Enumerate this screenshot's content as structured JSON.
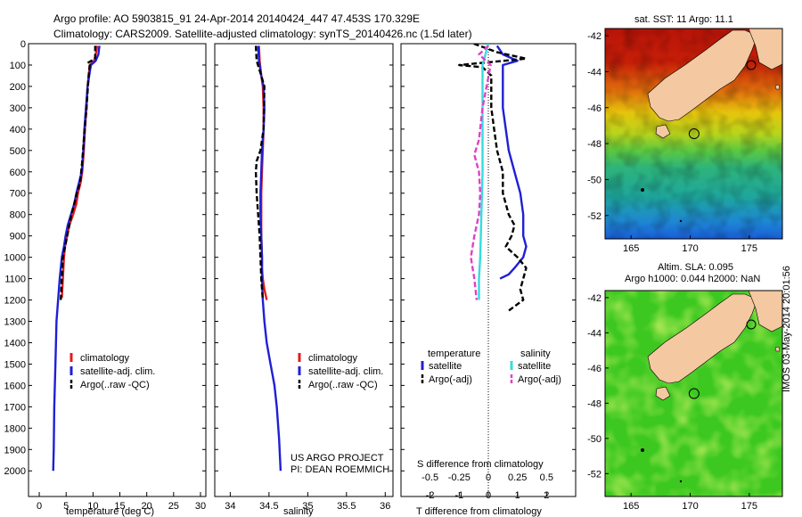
{
  "header": {
    "line1": "Argo profile: AO 5903815_91 24-Apr-2014 20140424_447 47.453S 170.329E",
    "line2": "Climatology: CARS2009. Satellite-adjusted climatology: synTS_20140426.nc (1.5d later)"
  },
  "credit": {
    "line1": "US ARGO PROJECT",
    "line2": "PI: DEAN ROEMMICH"
  },
  "stamp": "IMOS 03-May-2014 20:01:56",
  "colors": {
    "climatology": "#e41a1c",
    "satellite": "#1f1fd6",
    "argo": "#000000",
    "sal_sat": "#33dddd",
    "sal_argo": "#e040c8",
    "land": "#f4c8a0"
  },
  "chart_data": [
    {
      "type": "line",
      "id": "temperature",
      "xlabel": "temperature (deg C)",
      "xticks": [
        "0",
        "5",
        "10",
        "15",
        "20",
        "25",
        "30"
      ],
      "xlim": [
        -2,
        31
      ],
      "yticks": [
        "0",
        "100",
        "200",
        "300",
        "400",
        "500",
        "600",
        "700",
        "800",
        "900",
        "1000",
        "1100",
        "1200",
        "1300",
        "1400",
        "1500",
        "1600",
        "1700",
        "1800",
        "1900",
        "2000"
      ],
      "ylim": [
        0,
        2120
      ],
      "legend": [
        "climatology",
        "satellite-adj. clim.",
        "Argo(..raw -QC)"
      ],
      "series": [
        {
          "name": "climatology",
          "style": "solid",
          "x": [
            10.8,
            10.5,
            10.2,
            9.4,
            9.2,
            9.0,
            8.8,
            8.5,
            8.3,
            8.0,
            7.7,
            7.2,
            6.9,
            6.3,
            5.6,
            5.2,
            4.8,
            4.6,
            4.4,
            4.2
          ],
          "y": [
            10,
            50,
            80,
            100,
            150,
            200,
            300,
            400,
            500,
            600,
            650,
            700,
            750,
            800,
            850,
            900,
            950,
            1000,
            1100,
            1190
          ]
        },
        {
          "name": "satellite-adj. clim.",
          "style": "solid",
          "x": [
            11.2,
            11.0,
            10.5,
            9.6,
            9.3,
            9.0,
            8.7,
            8.4,
            8.2,
            7.9,
            7.4,
            6.9,
            6.5,
            5.9,
            5.3,
            4.9,
            4.6,
            4.2,
            3.8,
            3.5,
            3.2,
            3.0,
            2.8,
            2.7,
            2.6
          ],
          "y": [
            10,
            50,
            80,
            100,
            150,
            200,
            300,
            400,
            500,
            600,
            650,
            700,
            750,
            800,
            850,
            900,
            950,
            1000,
            1100,
            1200,
            1300,
            1500,
            1700,
            1900,
            2000
          ]
        },
        {
          "name": "Argo(..raw -QC)",
          "style": "dashed",
          "x": [
            10.4,
            10.4,
            9.0,
            9.4,
            9.2,
            8.8,
            8.3,
            8.0,
            7.6,
            7.0,
            6.5,
            6.0,
            5.6,
            5.2,
            4.8,
            4.4,
            4.2,
            4.0
          ],
          "y": [
            10,
            70,
            90,
            100,
            150,
            300,
            450,
            550,
            650,
            700,
            750,
            800,
            850,
            900,
            950,
            1000,
            1100,
            1200
          ]
        }
      ]
    },
    {
      "type": "line",
      "id": "salinity",
      "xlabel": "salinity",
      "xticks": [
        "34",
        "34.5",
        "35",
        "35.5",
        "36"
      ],
      "xlim": [
        33.8,
        36.1
      ],
      "ylim": [
        0,
        2120
      ],
      "legend": [
        "climatology",
        "satellite-adj. clim.",
        "Argo(..raw -QC)"
      ],
      "series": [
        {
          "name": "climatology",
          "style": "solid",
          "x": [
            34.37,
            34.38,
            34.4,
            34.42,
            34.43,
            34.43,
            34.42,
            34.41,
            34.4,
            34.4,
            34.4,
            34.41,
            34.41,
            34.42,
            34.44,
            34.47
          ],
          "y": [
            10,
            80,
            150,
            200,
            300,
            400,
            500,
            600,
            700,
            800,
            900,
            1000,
            1050,
            1100,
            1150,
            1200
          ]
        },
        {
          "name": "satellite-adj. clim.",
          "style": "solid",
          "x": [
            34.36,
            34.37,
            34.4,
            34.43,
            34.44,
            34.43,
            34.41,
            34.4,
            34.39,
            34.39,
            34.4,
            34.41,
            34.41,
            34.42,
            34.44,
            34.47,
            34.52,
            34.57,
            34.6,
            34.63,
            34.65
          ],
          "y": [
            10,
            80,
            150,
            200,
            300,
            400,
            500,
            600,
            700,
            800,
            900,
            1000,
            1100,
            1200,
            1300,
            1400,
            1500,
            1600,
            1700,
            1850,
            2000
          ]
        },
        {
          "name": "Argo(..raw -QC)",
          "style": "dashed",
          "x": [
            34.33,
            34.34,
            34.4,
            34.44,
            34.43,
            34.39,
            34.34,
            34.33,
            34.34,
            34.36,
            34.38,
            34.39,
            34.4,
            34.42
          ],
          "y": [
            10,
            80,
            150,
            200,
            400,
            500,
            550,
            600,
            700,
            800,
            900,
            1000,
            1100,
            1200
          ]
        }
      ]
    },
    {
      "type": "line",
      "id": "difference",
      "xlabel": "T difference from climatology",
      "xlabel_top": "S difference from climatology",
      "xticks": [
        "-2",
        "-1",
        "0",
        "1",
        "2"
      ],
      "xticks_top": [
        "-0.5",
        "-0.25",
        "0",
        "0.25",
        "0.5"
      ],
      "xlim": [
        -3,
        3
      ],
      "ylim": [
        0,
        2120
      ],
      "legend": {
        "temperature": "temperature",
        "salinity": "salinity",
        "items": [
          "satellite",
          "Argo(-adj)",
          "satellite",
          "Argo(-adj)"
        ]
      },
      "series": [
        {
          "name": "satellite",
          "group": "temperature",
          "style": "solid",
          "x": [
            0.3,
            0.4,
            0.5,
            1.0,
            0.5,
            0.5,
            0.5,
            0.6,
            0.7,
            0.9,
            1.1,
            1.2,
            1.2,
            1.3,
            1.2,
            0.9,
            0.7,
            0.4
          ],
          "y": [
            10,
            30,
            50,
            80,
            100,
            200,
            300,
            400,
            500,
            600,
            700,
            800,
            900,
            950,
            1000,
            1050,
            1080,
            1100
          ]
        },
        {
          "name": "Argo(-adj)",
          "group": "temperature",
          "style": "dashed",
          "x": [
            -0.5,
            0.3,
            1.3,
            -1.0,
            -0.2,
            0.1,
            0.1,
            0.2,
            0.3,
            0.5,
            0.5,
            0.7,
            0.9,
            0.8,
            0.6,
            1.0,
            1.3,
            1.2,
            1.1,
            1.2,
            0.7
          ],
          "y": [
            0,
            40,
            70,
            100,
            110,
            150,
            300,
            400,
            500,
            600,
            700,
            800,
            850,
            900,
            950,
            1000,
            1050,
            1100,
            1150,
            1200,
            1250
          ]
        },
        {
          "name": "satellite",
          "group": "salinity",
          "style": "solid",
          "x": [
            0.0,
            -0.05,
            -0.05,
            -0.05,
            -0.05,
            -0.06,
            -0.07,
            -0.08,
            -0.08,
            -0.08
          ],
          "y": [
            0,
            100,
            200,
            400,
            600,
            800,
            1000,
            1100,
            1150,
            1200
          ]
        },
        {
          "name": "Argo(-adj)",
          "group": "salinity",
          "style": "dashed",
          "x": [
            0.0,
            -0.08,
            0.02,
            -0.05,
            -0.08,
            -0.12,
            -0.08,
            -0.07,
            -0.08,
            -0.12,
            -0.15,
            -0.12,
            -0.1
          ],
          "y": [
            10,
            50,
            100,
            300,
            450,
            520,
            600,
            700,
            800,
            900,
            1000,
            1100,
            1200
          ]
        }
      ]
    },
    {
      "type": "heatmap",
      "id": "sst-map",
      "title": "sat. SST: 11 Argo: 11.1",
      "xticks": [
        "165",
        "170",
        "175"
      ],
      "yticks": [
        "-42",
        "-44",
        "-46",
        "-48",
        "-50",
        "-52"
      ],
      "xlim": [
        162.8,
        177.8
      ],
      "ylim": [
        -53.3,
        -41.6
      ],
      "argo_position": {
        "lon": 170.329,
        "lat": -47.453
      }
    },
    {
      "type": "heatmap",
      "id": "sla-map",
      "title": "Altim. SLA: 0.095",
      "subtitle": "Argo h1000: 0.044 h2000: NaN",
      "xticks": [
        "165",
        "170",
        "175"
      ],
      "yticks": [
        "-42",
        "-44",
        "-46",
        "-48",
        "-50",
        "-52"
      ],
      "xlim": [
        162.8,
        177.8
      ],
      "ylim": [
        -53.3,
        -41.6
      ],
      "argo_position": {
        "lon": 170.329,
        "lat": -47.453
      }
    }
  ]
}
